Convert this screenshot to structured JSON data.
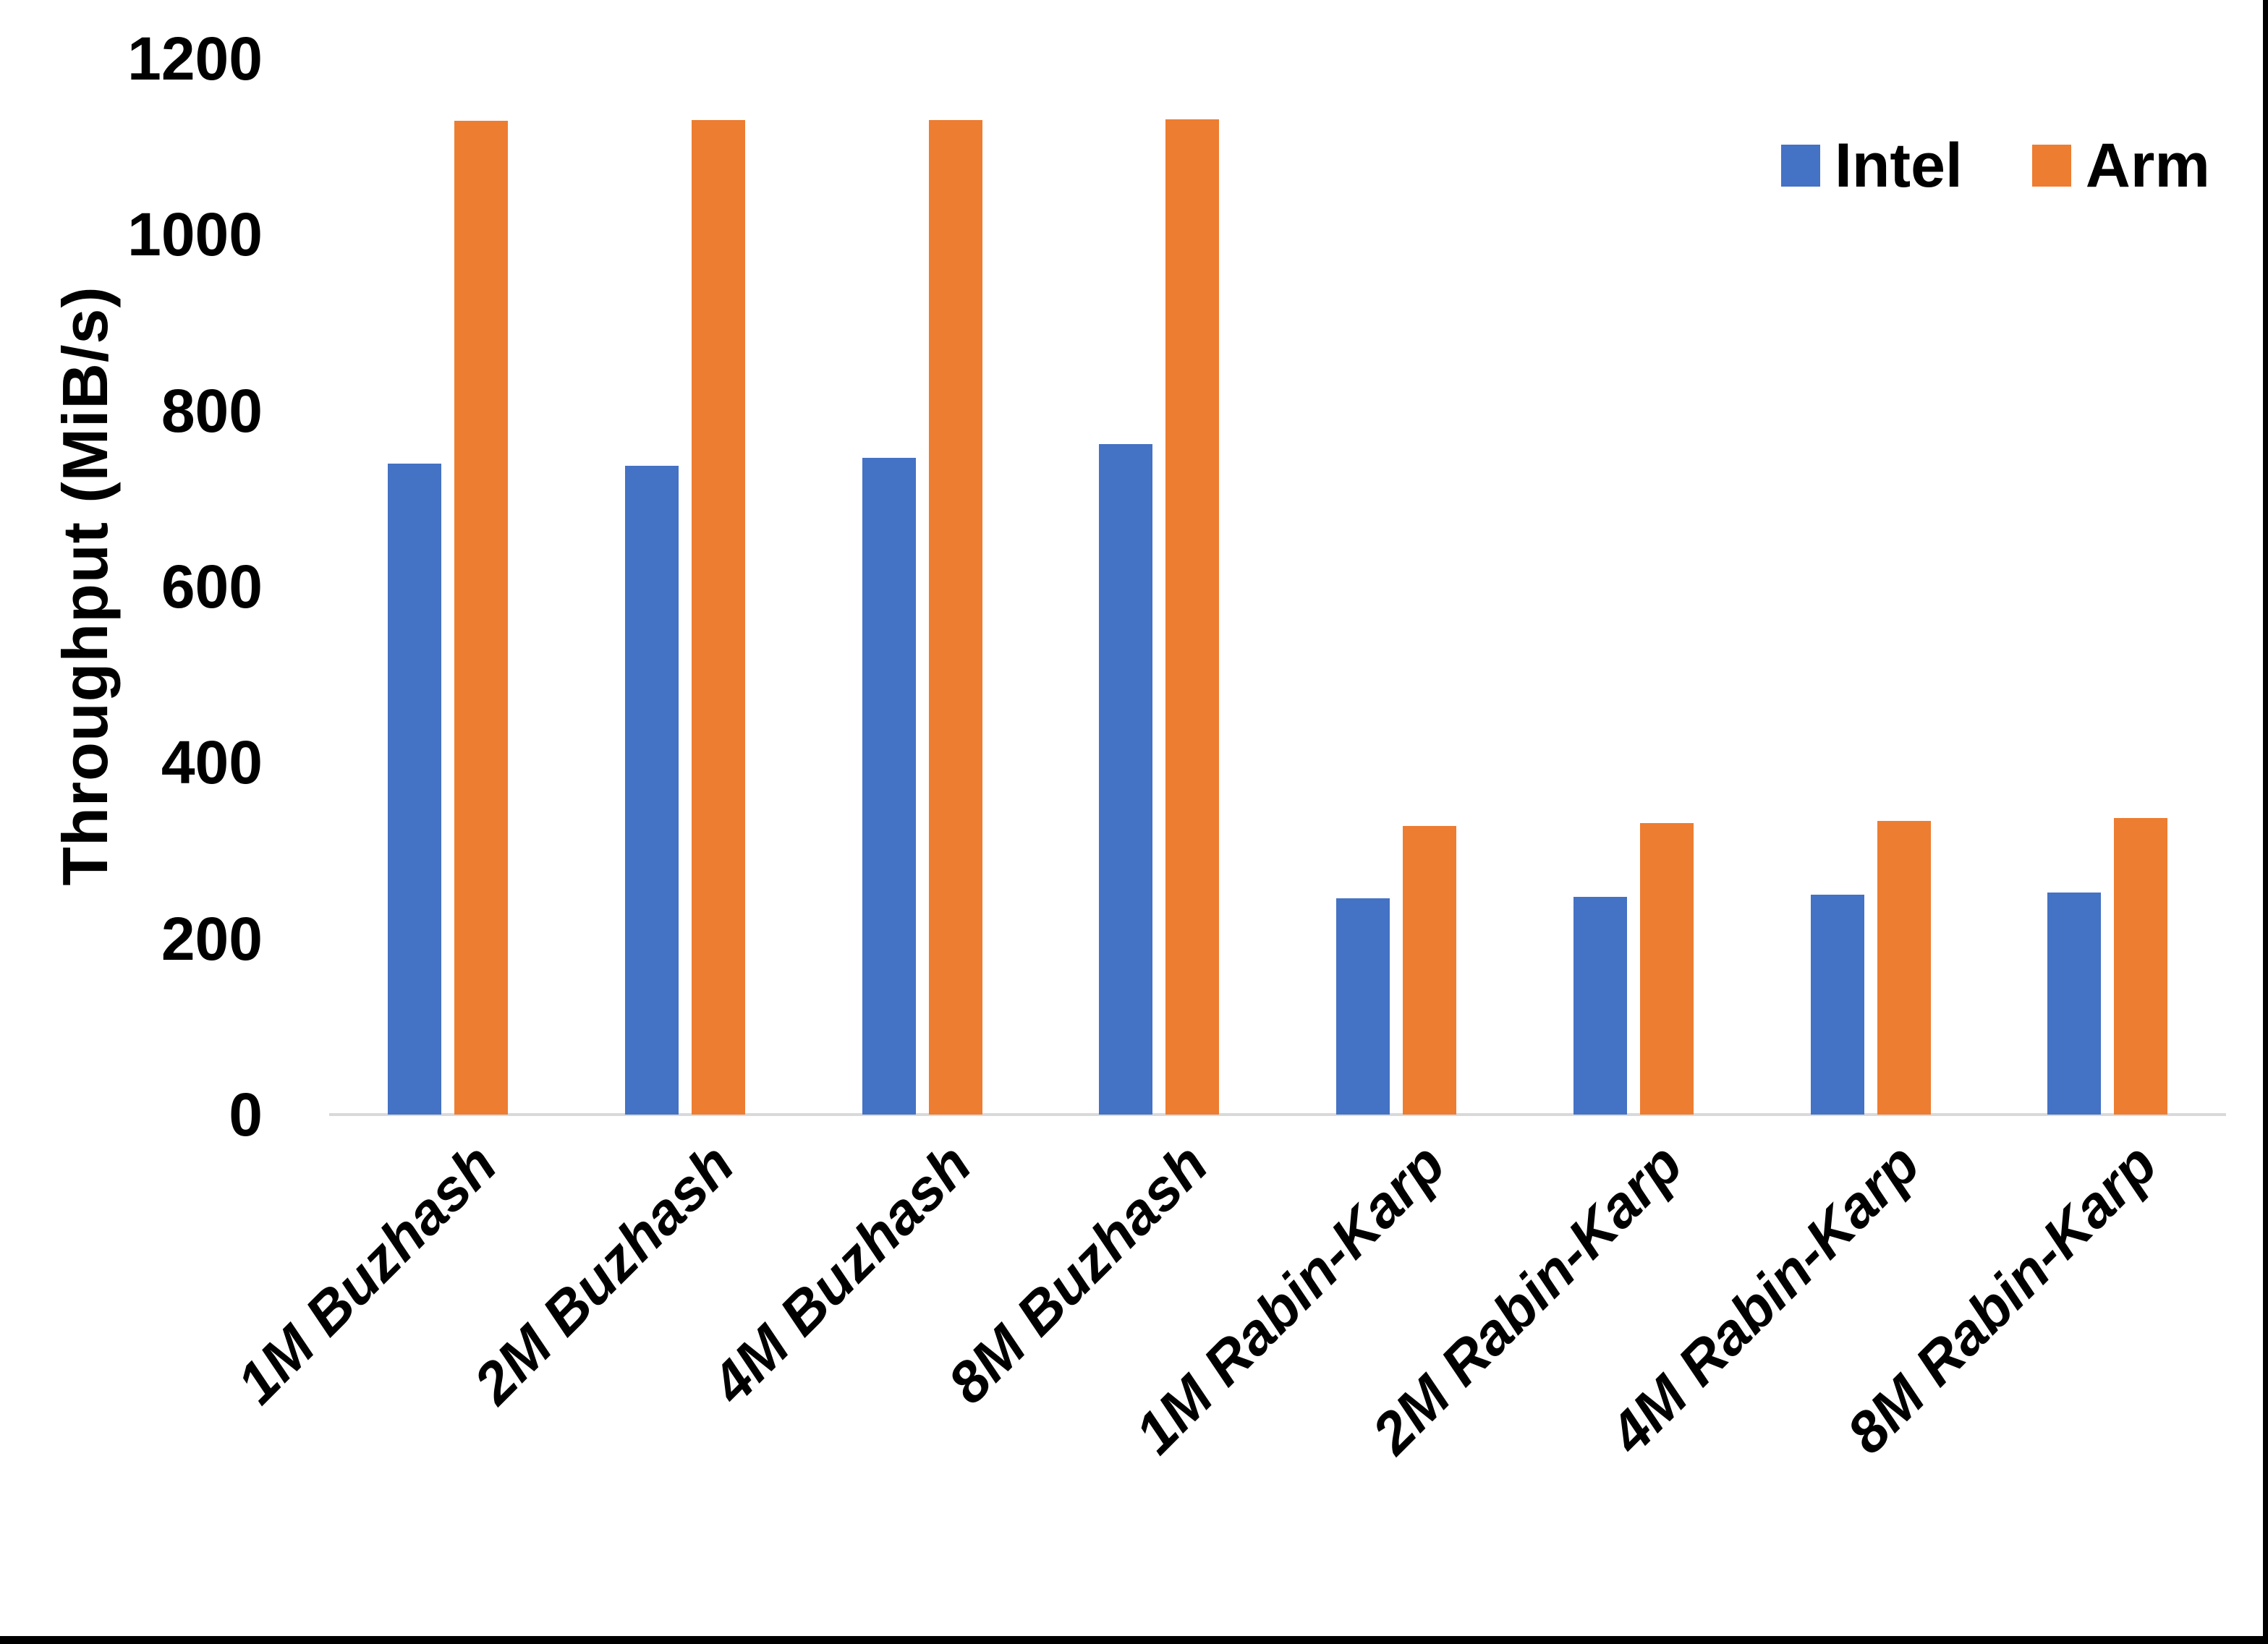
{
  "frame": {
    "background_color": "#FFFFFF",
    "edge_border_color": "#000000"
  },
  "chart_data": {
    "type": "bar",
    "title": "",
    "xlabel": "",
    "ylabel": "Throughput (MiB/s)",
    "ylim": [
      0,
      1200
    ],
    "yticks": [
      "0",
      "200",
      "400",
      "600",
      "800",
      "1000",
      "1200"
    ],
    "grid": false,
    "legend_position": "top-right",
    "axis_line_color": "#D9D9D9",
    "text_color": "#000000",
    "categories": [
      "1M Buzhash",
      "2M Buzhash",
      "4M Buzhash",
      "8M Buzhash",
      "1M Rabin-Karp",
      "2M Rabin-Karp",
      "4M Rabin-Karp",
      "8M Rabin-Karp"
    ],
    "series": [
      {
        "name": "Intel",
        "color": "#4472C4",
        "values": [
          740,
          737,
          746,
          762,
          246,
          247,
          250,
          252
        ]
      },
      {
        "name": "Arm",
        "color": "#ED7D31",
        "values": [
          1129,
          1130,
          1130,
          1131,
          328,
          331,
          334,
          337
        ]
      }
    ]
  }
}
